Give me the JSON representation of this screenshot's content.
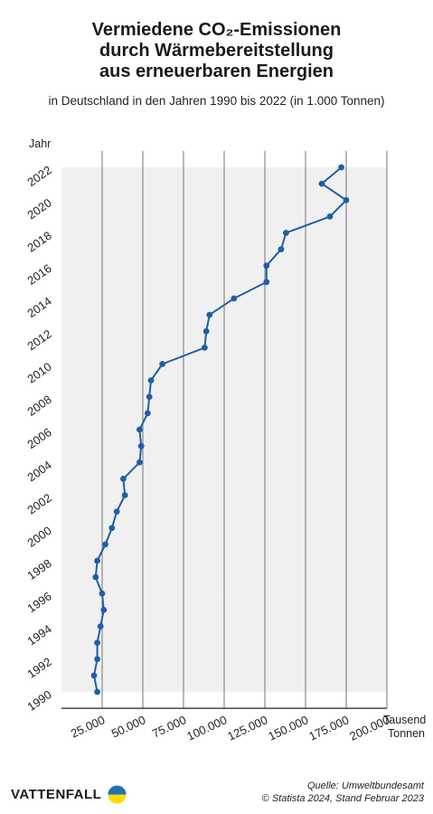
{
  "title_lines": [
    "Vermiedene CO₂-Emissionen",
    "durch Wärmebereitstellung",
    "aus erneuerbaren Energien"
  ],
  "subtitle": "in Deutschland in den Jahren 1990 bis 2022 (in 1.000 Tonnen)",
  "brand": "VATTENFALL",
  "source_line1": "Quelle: Umweltbundesamt",
  "source_line2": "© Statista 2024, Stand Februar 2023",
  "colors": {
    "line": "#1f5fa6",
    "stripe": "#f0f0f0",
    "grid": "#555555",
    "logo_blue": "#2071b5",
    "logo_yellow": "#ffda00"
  },
  "chart_data": {
    "type": "line",
    "orientation": "horizontal-time-on-y",
    "ylabel": "Jahr",
    "xlabel_lines": [
      "Tausend",
      "Tonnen"
    ],
    "xlim": [
      0,
      200000
    ],
    "ylim": [
      1990,
      2022
    ],
    "x_ticks": [
      25000,
      50000,
      75000,
      100000,
      125000,
      150000,
      175000,
      200000
    ],
    "x_tick_labels": [
      "25.000",
      "50.000",
      "75.000",
      "100.000",
      "125.000",
      "150.000",
      "175.000",
      "200.000"
    ],
    "y_ticks": [
      1990,
      1992,
      1994,
      1996,
      1998,
      2000,
      2002,
      2004,
      2006,
      2008,
      2010,
      2012,
      2014,
      2016,
      2018,
      2020,
      2022
    ],
    "y_tick_labels": [
      "1990",
      "1992",
      "1994",
      "1996",
      "1998",
      "2000",
      "2002",
      "2004",
      "2006",
      "2008",
      "2010",
      "2012",
      "2014",
      "2016",
      "2018",
      "2020",
      "2022"
    ],
    "grid": true,
    "series": [
      {
        "years": [
          1990,
          1991,
          1992,
          1993,
          1994,
          1995,
          1996,
          1997,
          1998,
          1999,
          2000,
          2001,
          2002,
          2003,
          2004,
          2005,
          2006,
          2007,
          2008,
          2009,
          2010,
          2011,
          2012,
          2013,
          2014,
          2015,
          2016,
          2017,
          2018,
          2019,
          2020,
          2021,
          2022
        ],
        "values": [
          22000,
          20000,
          22000,
          22000,
          24000,
          26000,
          25000,
          21000,
          22000,
          27000,
          31000,
          34000,
          39000,
          38000,
          48000,
          49000,
          48000,
          53000,
          54000,
          55000,
          62000,
          88000,
          89000,
          91000,
          106000,
          126000,
          126000,
          135000,
          138000,
          165000,
          175000,
          160000,
          172000
        ]
      }
    ]
  }
}
